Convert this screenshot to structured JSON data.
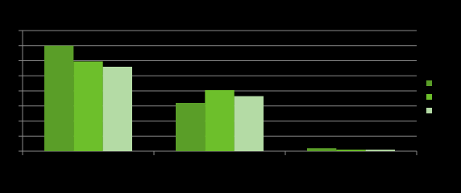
{
  "chart_data": {
    "type": "bar",
    "categories": [
      null,
      null,
      null
    ],
    "series": [
      {
        "color": "#5a9e28",
        "values": [
          7.0,
          3.2,
          0.2
        ]
      },
      {
        "color": "#6dbf2b",
        "values": [
          5.95,
          4.05,
          0.1
        ]
      },
      {
        "color": "#b4dba5",
        "values": [
          5.6,
          3.65,
          0.1
        ]
      }
    ],
    "ylim": [
      0,
      8
    ],
    "yticks": [
      0,
      1,
      2,
      3,
      4,
      5,
      6,
      7,
      8
    ],
    "grid": true,
    "legend": "right"
  }
}
